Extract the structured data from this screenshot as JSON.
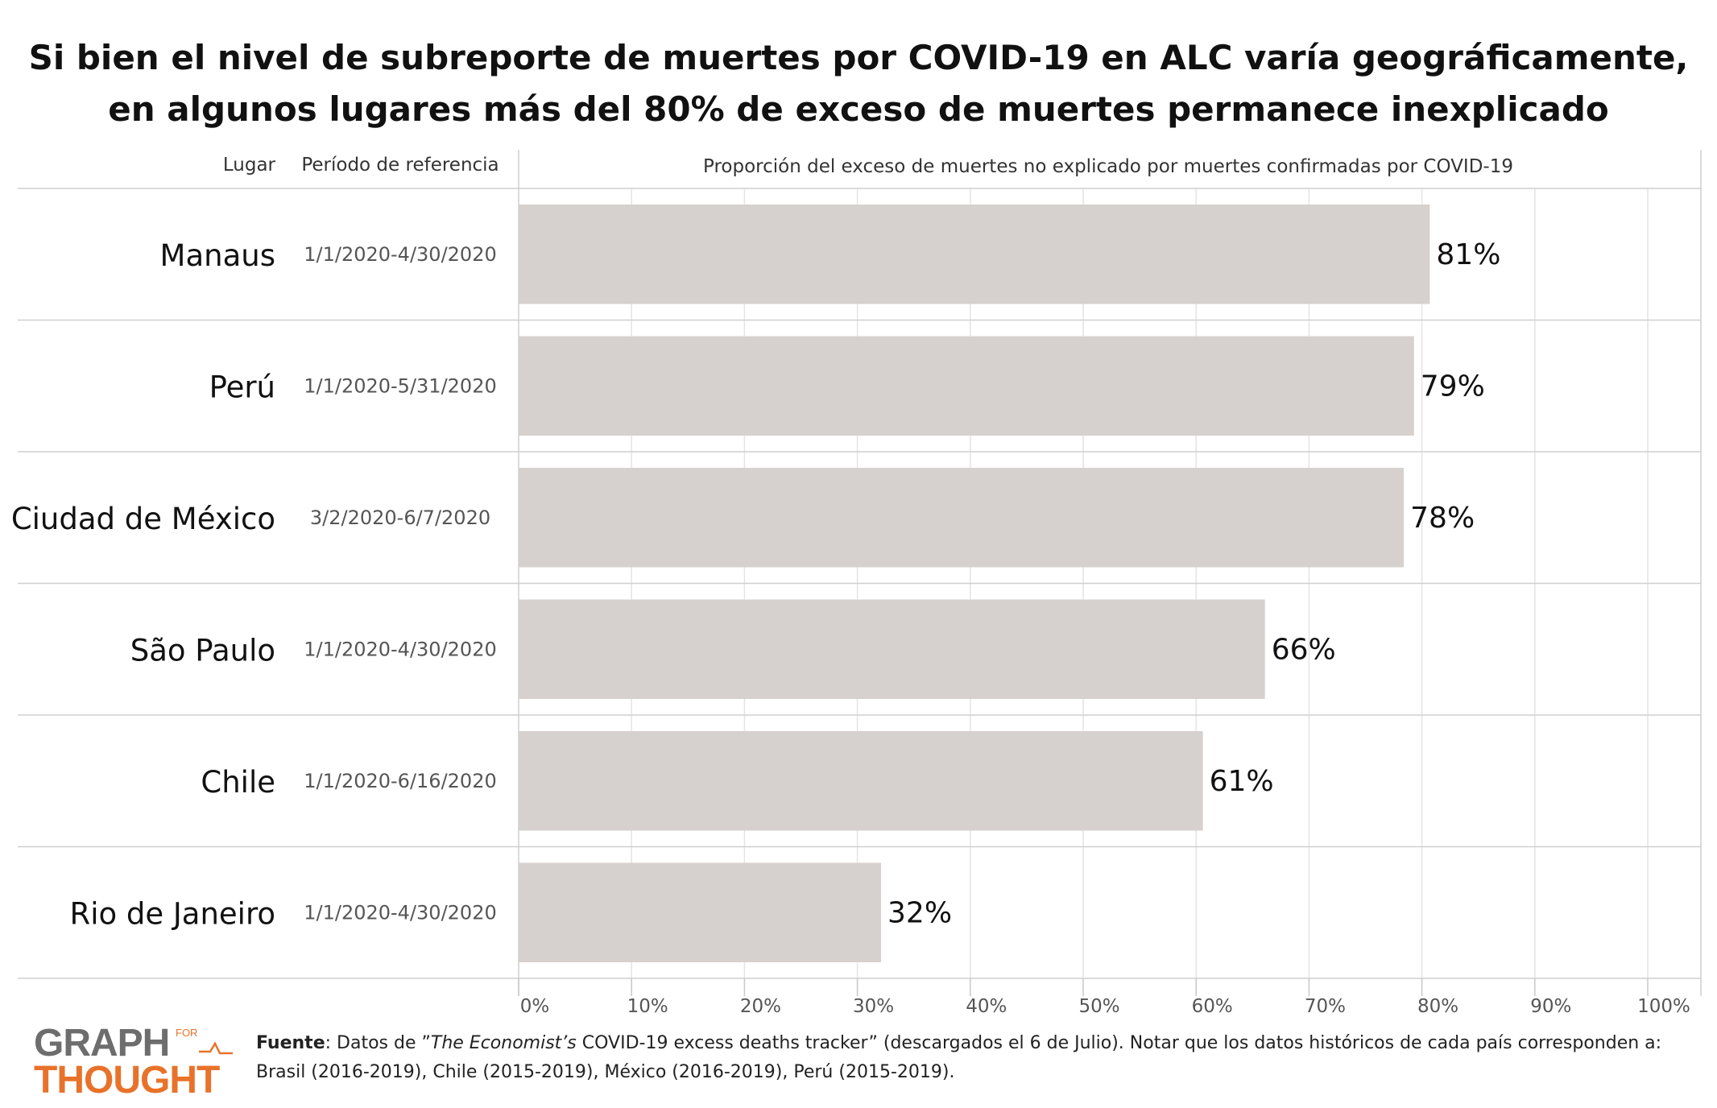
{
  "title": "Si bien el nivel de subreporte de muertes por COVID-19 en ALC varía geográficamente, en algunos lugares más del 80% de exceso de muertes permanece inexplicado",
  "headers": {
    "place": "Lugar",
    "period": "Período de referencia",
    "measure": "Proporción del exceso de muertes no explicado por muertes confirmadas por COVID-19"
  },
  "chart_data": {
    "type": "bar",
    "orientation": "horizontal",
    "title": "Si bien el nivel de subreporte de muertes por COVID-19 en ALC varía geográficamente, en algunos lugares más del 80% de exceso de muertes permanece inexplicado",
    "xlabel": "Proporción del exceso de muertes no explicado por muertes confirmadas por COVID-19",
    "ylabel": "Lugar",
    "xlim": [
      0,
      100
    ],
    "x_ticks": [
      "0%",
      "10%",
      "20%",
      "30%",
      "40%",
      "50%",
      "60%",
      "70%",
      "80%",
      "90%",
      "100%"
    ],
    "categories": [
      "Manaus",
      "Perú",
      "Ciudad de México",
      "São Paulo",
      "Chile",
      "Rio de Janeiro"
    ],
    "periods": [
      "1/1/2020-4/30/2020",
      "1/1/2020-5/31/2020",
      "3/2/2020-6/7/2020",
      "1/1/2020-4/30/2020",
      "1/1/2020-6/16/2020",
      "1/1/2020-4/30/2020"
    ],
    "values": [
      80.7,
      79.3,
      78.4,
      66.1,
      60.6,
      32.1
    ],
    "value_labels": [
      "81%",
      "79%",
      "78%",
      "66%",
      "61%",
      "32%"
    ],
    "bar_color": "#d6d1ce",
    "grid": true
  },
  "footer": {
    "logo_top": "GRAPH",
    "logo_small": "FOR",
    "logo_bottom": "THOUGHT",
    "source_label": "Fuente",
    "source_pre": ": Datos de ”",
    "source_italic": "The Economist’s",
    "source_post": " COVID-19 excess deaths tracker” (descargados el 6 de Julio). Notar que los datos históricos de cada país corresponden a: Brasil (2016-2019), Chile (2015-2019), México (2016-2019), Perú (2015-2019)."
  },
  "colors": {
    "bar": "#d6d1ce",
    "grid": "#e4e4e4",
    "rule": "#cfcfcf",
    "logo_gray": "#6d6d6d",
    "logo_orange": "#e8722a"
  }
}
